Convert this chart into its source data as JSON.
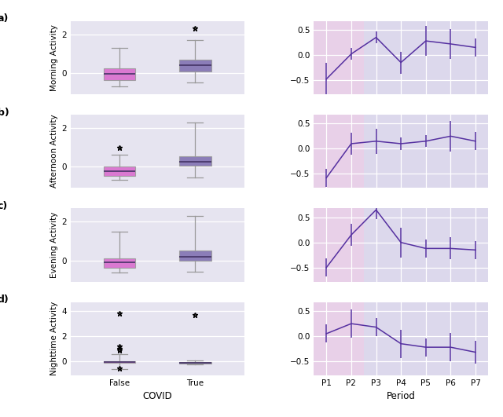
{
  "row_labels": [
    "a)",
    "b)",
    "c)",
    "d)"
  ],
  "y_labels": [
    "Morning Activity",
    "Afternoon Activity",
    "Evening Activity",
    "Nighttime Activity"
  ],
  "box_colors_false": "#d966cc",
  "box_colors_true": "#7b6bae",
  "box_x": [
    "False",
    "True"
  ],
  "xlabel_box": "COVID",
  "xlabel_line": "Period",
  "periods": [
    "P1",
    "P2",
    "P3",
    "P4",
    "P5",
    "P6",
    "P7"
  ],
  "bg_color_box": "#e6e4f0",
  "bg_color_line_main": "#dcd8ec",
  "bg_color_line_pink": "#e8d0e8",
  "line_color": "#5530a0",
  "grid_color": "#ffffff",
  "box_data": {
    "morning": {
      "false": {
        "whislo": -0.7,
        "q1": -0.38,
        "med": -0.05,
        "q3": 0.22,
        "whishi": 1.3,
        "fliers": []
      },
      "true": {
        "whislo": -0.5,
        "q1": 0.08,
        "med": 0.38,
        "q3": 0.68,
        "whishi": 1.7,
        "fliers": [
          2.3
        ]
      }
    },
    "afternoon": {
      "false": {
        "whislo": -0.7,
        "q1": -0.48,
        "med": -0.25,
        "q3": 0.02,
        "whishi": 0.6,
        "fliers": [
          1.0
        ]
      },
      "true": {
        "whislo": -0.55,
        "q1": 0.05,
        "med": 0.25,
        "q3": 0.52,
        "whishi": 2.3,
        "fliers": []
      }
    },
    "evening": {
      "false": {
        "whislo": -0.65,
        "q1": -0.38,
        "med": -0.1,
        "q3": 0.12,
        "whishi": 1.5,
        "fliers": []
      },
      "true": {
        "whislo": -0.6,
        "q1": -0.02,
        "med": 0.18,
        "q3": 0.52,
        "whishi": 2.3,
        "fliers": []
      }
    },
    "nighttime": {
      "false": {
        "whislo": -0.6,
        "q1": -0.12,
        "med": -0.04,
        "q3": 0.04,
        "whishi": 0.6,
        "fliers": [
          3.8,
          1.2,
          1.0,
          0.9,
          -0.55
        ]
      },
      "true": {
        "whislo": -0.25,
        "q1": -0.15,
        "med": -0.08,
        "q3": -0.02,
        "whishi": 0.08,
        "fliers": [
          3.7
        ]
      }
    }
  },
  "line_data": {
    "morning": {
      "y": [
        -0.48,
        0.02,
        0.35,
        -0.15,
        0.28,
        0.22,
        0.15
      ],
      "yerr": [
        0.32,
        0.12,
        0.12,
        0.22,
        0.3,
        0.3,
        0.18
      ]
    },
    "afternoon": {
      "y": [
        -0.58,
        0.1,
        0.15,
        0.1,
        0.15,
        0.25,
        0.15
      ],
      "yerr": [
        0.18,
        0.22,
        0.25,
        0.12,
        0.12,
        0.3,
        0.18
      ]
    },
    "evening": {
      "y": [
        -0.5,
        0.15,
        0.65,
        0.0,
        -0.12,
        -0.12,
        -0.15
      ],
      "yerr": [
        0.18,
        0.22,
        0.18,
        0.3,
        0.18,
        0.22,
        0.18
      ]
    },
    "nighttime": {
      "y": [
        0.05,
        0.25,
        0.18,
        -0.15,
        -0.22,
        -0.22,
        -0.32
      ],
      "yerr": [
        0.18,
        0.28,
        0.18,
        0.28,
        0.18,
        0.28,
        0.22
      ]
    }
  },
  "box_ylims": {
    "morning": [
      -1.1,
      2.7
    ],
    "afternoon": [
      -1.1,
      2.7
    ],
    "evening": [
      -1.1,
      2.7
    ],
    "nighttime": [
      -1.1,
      4.7
    ]
  },
  "box_yticks": {
    "morning": [
      0,
      2
    ],
    "afternoon": [
      0,
      2
    ],
    "evening": [
      0,
      2
    ],
    "nighttime": [
      0,
      2,
      4
    ]
  },
  "line_ylim": [
    -0.78,
    0.68
  ],
  "line_yticks": [
    -0.5,
    0.0,
    0.5
  ],
  "pink_xspan": [
    -0.5,
    1.5
  ]
}
